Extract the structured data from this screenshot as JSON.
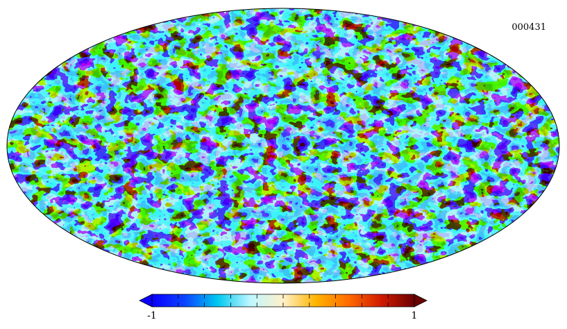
{
  "map": {
    "id_label": "000431",
    "projection": "mollweide",
    "pattern": "random-field"
  },
  "colorbar": {
    "min_label": "-1",
    "max_label": "1",
    "colors": [
      "#0a00ff",
      "#0a44ff",
      "#00c8f0",
      "#bff7ff",
      "#fff1c8",
      "#ffb400",
      "#ff6a00",
      "#d01a00",
      "#6a0000"
    ],
    "extend": "both"
  }
}
